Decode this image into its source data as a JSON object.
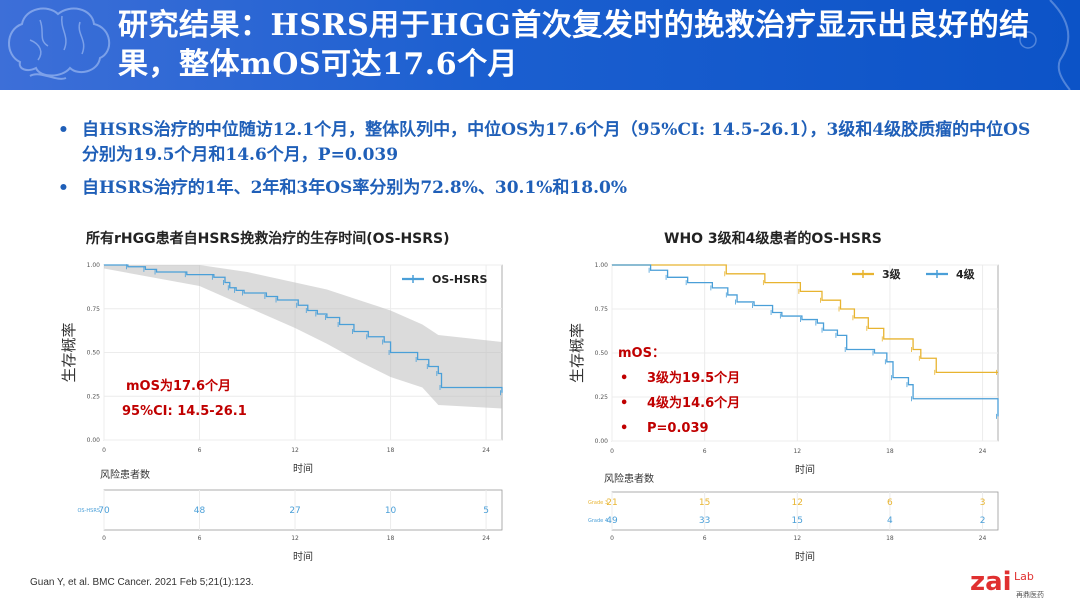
{
  "header": {
    "title": "研究结果：HSRS用于HGG首次复发时的挽救治疗显示出良好的结果，整体mOS可达17.6个月"
  },
  "bullets": [
    "自HSRS治疗的中位随访12.1个月，整体队列中，中位OS为17.6个月（95%CI: 14.5-26.1），3级和4级胶质瘤的中位OS分别为19.5个月和14.6个月，P=0.039",
    "自HSRS治疗的1年、2年和3年OS率分别为72.8%、30.1%和18.0%"
  ],
  "bullet_marker": "•",
  "colors": {
    "header_blue": "#1b5fd0",
    "bullet_blue": "#1f5fb8",
    "series_blue": "#4a9fd8",
    "series_gold": "#e8b430",
    "annot_red": "#c00000"
  },
  "chart_data": [
    {
      "type": "line",
      "title": "所有rHGG患者自HSRS挽救治疗的生存时间(OS-HSRS)",
      "xlabel": "时间",
      "ylabel": "生存概率",
      "xlim": [
        0,
        25
      ],
      "ylim": [
        0,
        1
      ],
      "x_ticks": [
        "0",
        "6",
        "12",
        "18",
        "24"
      ],
      "x_tick_values": [
        0,
        6,
        12,
        18,
        24
      ],
      "y_ticks": [
        "0.00",
        "0.25",
        "0.50",
        "0.75",
        "1.00"
      ],
      "y_tick_values": [
        0,
        0.25,
        0.5,
        0.75,
        1
      ],
      "legend_position": "top-right",
      "series": [
        {
          "name": "OS-HSRS",
          "color": "#4a9fd8",
          "steps": [
            [
              0,
              1
            ],
            [
              1.5,
              0.99
            ],
            [
              2.6,
              0.975
            ],
            [
              3.3,
              0.96
            ],
            [
              5.2,
              0.945
            ],
            [
              6.9,
              0.93
            ],
            [
              7.6,
              0.9
            ],
            [
              7.9,
              0.87
            ],
            [
              8.3,
              0.855
            ],
            [
              8.8,
              0.84
            ],
            [
              10.2,
              0.82
            ],
            [
              10.9,
              0.8
            ],
            [
              12.2,
              0.77
            ],
            [
              12.8,
              0.74
            ],
            [
              13.4,
              0.72
            ],
            [
              14.0,
              0.7
            ],
            [
              14.8,
              0.66
            ],
            [
              15.7,
              0.62
            ],
            [
              16.6,
              0.59
            ],
            [
              17.6,
              0.56
            ],
            [
              18.0,
              0.5
            ],
            [
              19.7,
              0.46
            ],
            [
              20.4,
              0.42
            ],
            [
              21.0,
              0.38
            ],
            [
              21.2,
              0.3
            ],
            [
              25.0,
              0.27
            ]
          ],
          "ci_upper": [
            [
              0,
              1
            ],
            [
              6,
              1
            ],
            [
              9,
              0.96
            ],
            [
              12,
              0.9
            ],
            [
              14,
              0.86
            ],
            [
              16,
              0.8
            ],
            [
              18,
              0.74
            ],
            [
              20,
              0.66
            ],
            [
              21,
              0.6
            ],
            [
              25,
              0.56
            ]
          ],
          "ci_lower": [
            [
              0,
              0.98
            ],
            [
              6,
              0.88
            ],
            [
              9,
              0.76
            ],
            [
              12,
              0.64
            ],
            [
              14,
              0.55
            ],
            [
              16,
              0.45
            ],
            [
              18,
              0.36
            ],
            [
              20,
              0.3
            ],
            [
              21,
              0.2
            ],
            [
              25,
              0.18
            ]
          ]
        }
      ],
      "annotations": [
        "mOS为17.6个月",
        "95%CI: 14.5-26.1"
      ],
      "risk_table": {
        "title": "风险患者数",
        "rows": [
          {
            "label": "OS-HSRS",
            "values": [
              "70",
              "48",
              "27",
              "10",
              "5"
            ]
          }
        ]
      }
    },
    {
      "type": "line",
      "title": "WHO 3级和4级患者的OS-HSRS",
      "xlabel": "时间",
      "ylabel": "生存概率",
      "xlim": [
        0,
        25
      ],
      "ylim": [
        0,
        1
      ],
      "x_ticks": [
        "0",
        "6",
        "12",
        "18",
        "24"
      ],
      "x_tick_values": [
        0,
        6,
        12,
        18,
        24
      ],
      "y_ticks": [
        "0.00",
        "0.25",
        "0.50",
        "0.75",
        "1.00"
      ],
      "y_tick_values": [
        0,
        0.25,
        0.5,
        0.75,
        1
      ],
      "legend_position": "top-right",
      "series": [
        {
          "name": "3级",
          "color": "#e8b430",
          "steps": [
            [
              0,
              1
            ],
            [
              7.4,
              0.95
            ],
            [
              9.9,
              0.9
            ],
            [
              12.2,
              0.85
            ],
            [
              13.6,
              0.8
            ],
            [
              14.8,
              0.75
            ],
            [
              15.7,
              0.7
            ],
            [
              16.6,
              0.64
            ],
            [
              17.6,
              0.58
            ],
            [
              19.5,
              0.52
            ],
            [
              20.0,
              0.47
            ],
            [
              21.0,
              0.39
            ],
            [
              25.0,
              0.39
            ]
          ]
        },
        {
          "name": "4级",
          "color": "#4a9fd8",
          "steps": [
            [
              0,
              1
            ],
            [
              2.5,
              0.97
            ],
            [
              3.6,
              0.93
            ],
            [
              4.9,
              0.9
            ],
            [
              6.5,
              0.87
            ],
            [
              7.5,
              0.83
            ],
            [
              8.1,
              0.79
            ],
            [
              9.2,
              0.77
            ],
            [
              10.4,
              0.73
            ],
            [
              11.0,
              0.71
            ],
            [
              12.3,
              0.69
            ],
            [
              13.3,
              0.67
            ],
            [
              13.7,
              0.63
            ],
            [
              14.6,
              0.6
            ],
            [
              15.2,
              0.52
            ],
            [
              17.0,
              0.5
            ],
            [
              17.8,
              0.45
            ],
            [
              18.2,
              0.36
            ],
            [
              19.2,
              0.32
            ],
            [
              19.5,
              0.24
            ],
            [
              25.0,
              0.14
            ]
          ]
        }
      ],
      "annotations": [
        "mOS：",
        "3级为19.5个月",
        "4级为14.6个月",
        "P=0.039"
      ],
      "risk_table": {
        "title": "风险患者数",
        "rows": [
          {
            "label": "Grade 3",
            "values": [
              "21",
              "15",
              "12",
              "6",
              "3"
            ]
          },
          {
            "label": "Grade 4",
            "values": [
              "49",
              "33",
              "15",
              "4",
              "2"
            ]
          }
        ]
      }
    }
  ],
  "citation": "Guan Y, et al. BMC Cancer. 2021 Feb 5;21(1):123.",
  "logo": {
    "main": "zai",
    "sup": "Lab",
    "sub": "再鼎医药"
  }
}
